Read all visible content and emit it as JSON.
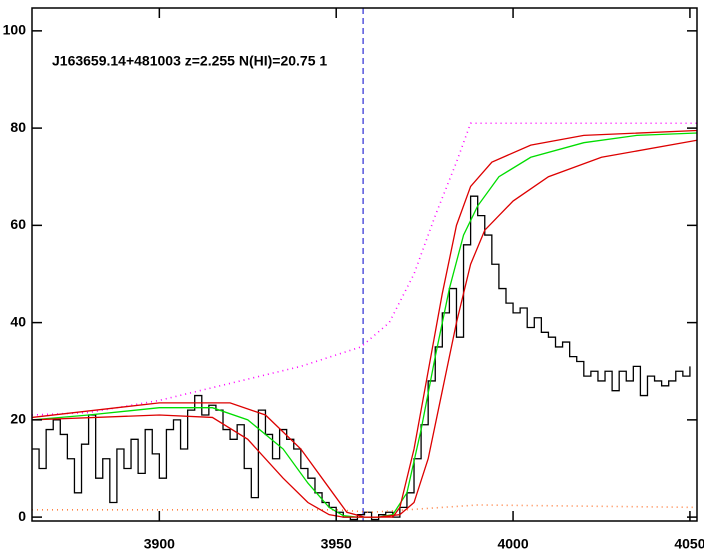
{
  "chart_data": {
    "type": "line",
    "annotation": "J163659.14+481003 z=2.255 N(HI)=20.75 1",
    "xlim": [
      3864,
      4052
    ],
    "ylim": [
      -0.8,
      104.7
    ],
    "xticks": [
      3900,
      3950,
      4000,
      4050
    ],
    "yticks": [
      0,
      20,
      40,
      60,
      80,
      100
    ],
    "vline": 3957.6,
    "series": [
      {
        "color": "#000000",
        "step": true,
        "x": [
          3864,
          3866,
          3868,
          3870,
          3872,
          3874,
          3876,
          3878,
          3880,
          3882,
          3884,
          3886,
          3888,
          3890,
          3892,
          3894,
          3896,
          3898,
          3900,
          3902,
          3904,
          3906,
          3908,
          3910,
          3912,
          3914,
          3916,
          3918,
          3920,
          3922,
          3924,
          3926,
          3928,
          3930,
          3932,
          3934,
          3936,
          3938,
          3940,
          3942,
          3944,
          3946,
          3948,
          3950,
          3952,
          3954,
          3956,
          3958,
          3960,
          3962,
          3964,
          3966,
          3968,
          3970,
          3972,
          3974,
          3976,
          3978,
          3980,
          3982,
          3984,
          3986,
          3988,
          3990,
          3992,
          3994,
          3996,
          3998,
          4000,
          4002,
          4004,
          4006,
          4008,
          4010,
          4012,
          4014,
          4016,
          4018,
          4020,
          4022,
          4024,
          4026,
          4028,
          4030,
          4032,
          4034,
          4036,
          4038,
          4040,
          4042,
          4044,
          4046,
          4048,
          4050
        ],
        "values": [
          14,
          10,
          18,
          20,
          17,
          12,
          5,
          15,
          21,
          8,
          12,
          3,
          14,
          10,
          16,
          9,
          18,
          13,
          8,
          18,
          20,
          14,
          22,
          25,
          21,
          23,
          22,
          18,
          16,
          19,
          10,
          4,
          22,
          17,
          12,
          18,
          16,
          14,
          10,
          8,
          5,
          3,
          2,
          1,
          0,
          -0.5,
          0.5,
          1,
          -0.5,
          0.5,
          1,
          0,
          2,
          5,
          12,
          19,
          28,
          35,
          42,
          47,
          37,
          56,
          66,
          62,
          58,
          52,
          47,
          44,
          42,
          43,
          39,
          41,
          38,
          37,
          35,
          36,
          33,
          32,
          29,
          30,
          28,
          30,
          26,
          30,
          28,
          31,
          25,
          29,
          28,
          27,
          28,
          30,
          29,
          31
        ]
      },
      {
        "color": "#ff00ff",
        "dash": "1,4",
        "x": [
          3864,
          3880,
          3900,
          3920,
          3940,
          3957,
          3965,
          3972,
          3978,
          3984,
          3988,
          4052
        ],
        "values": [
          21,
          21.5,
          24,
          27.5,
          31,
          35,
          40,
          50,
          62,
          73,
          81,
          81
        ]
      },
      {
        "color": "#ff8040",
        "dash": "1,4",
        "x": [
          3864,
          3950,
          3960,
          3990,
          4052
        ],
        "values": [
          1.5,
          1.5,
          1,
          2.5,
          2
        ]
      },
      {
        "color": "#00dd00",
        "x": [
          3864,
          3880,
          3900,
          3915,
          3925,
          3935,
          3942,
          3948,
          3952,
          3956,
          3962,
          3966,
          3970,
          3974,
          3978,
          3982,
          3986,
          3990,
          3996,
          4005,
          4020,
          4035,
          4052
        ],
        "values": [
          20,
          21,
          22.5,
          22.5,
          20,
          14,
          7,
          2,
          0.3,
          0,
          0,
          0.5,
          5,
          18,
          33,
          47,
          58,
          64,
          70,
          74,
          77,
          78.5,
          79
        ]
      },
      {
        "color": "#dd0000",
        "x": [
          3864,
          3900,
          3920,
          3930,
          3940,
          3948,
          3953,
          3958,
          3966,
          3968,
          3972,
          3976,
          3980,
          3984,
          3988,
          3994,
          4005,
          4020,
          4052
        ],
        "values": [
          20.5,
          23.5,
          23.5,
          21,
          14,
          6,
          1,
          0,
          0,
          2,
          14,
          30,
          46,
          60,
          68,
          73,
          76.5,
          78.5,
          79.5
        ]
      },
      {
        "color": "#dd0000",
        "x": [
          3864,
          3900,
          3915,
          3925,
          3935,
          3942,
          3948,
          3952,
          3962,
          3968,
          3972,
          3976,
          3980,
          3984,
          3988,
          3992,
          4000,
          4010,
          4025,
          4052
        ],
        "values": [
          20,
          21,
          20.5,
          16,
          8,
          3,
          0.5,
          0,
          0,
          0.5,
          3,
          12,
          26,
          40,
          52,
          59,
          65,
          70,
          74,
          77.5
        ]
      }
    ]
  }
}
